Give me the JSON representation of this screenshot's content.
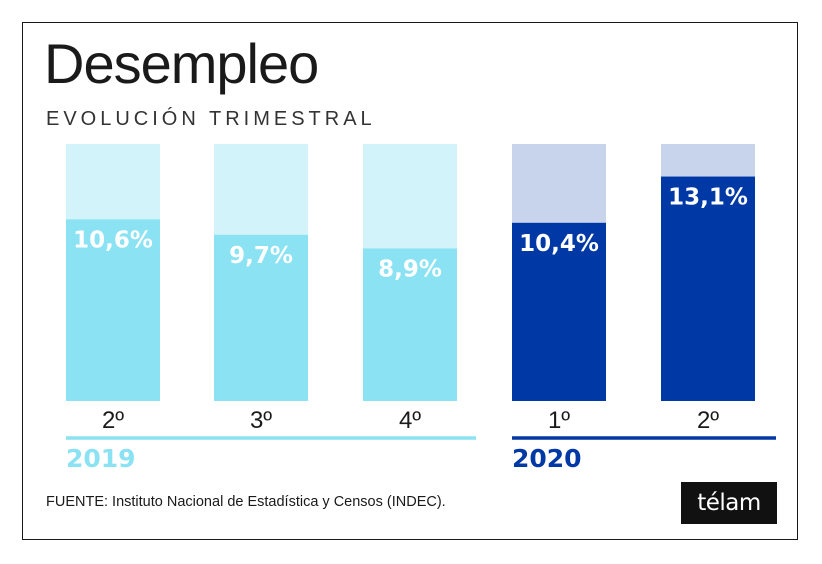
{
  "title": "Desempleo",
  "subtitle": "EVOLUCIÓN TRIMESTRAL",
  "source": "FUENTE: Instituto Nacional de Estadística y Censos (INDEC).",
  "logo_text": "télam",
  "colors": {
    "year_2019_bar": "#8ae2f2",
    "year_2019_track": "#d2f3f9",
    "year_2020_bar": "#0039a6",
    "year_2020_track": "#c8d3ec"
  },
  "chart_data": {
    "type": "bar",
    "title": "Desempleo",
    "subtitle": "EVOLUCIÓN TRIMESTRAL",
    "categories": [
      "2º",
      "3º",
      "4º",
      "1º",
      "2º"
    ],
    "years": [
      "2019",
      "2019",
      "2019",
      "2020",
      "2020"
    ],
    "groups": [
      {
        "name": "2019",
        "categories": [
          "2º",
          "3º",
          "4º"
        ]
      },
      {
        "name": "2020",
        "categories": [
          "1º",
          "2º"
        ]
      }
    ],
    "values": [
      10.6,
      9.7,
      8.9,
      10.4,
      13.1
    ],
    "value_labels": [
      "10,6%",
      "9,7%",
      "8,9%",
      "10,4%",
      "13,1%"
    ],
    "ylim": [
      0,
      15
    ],
    "grid": false,
    "legend": "none"
  }
}
